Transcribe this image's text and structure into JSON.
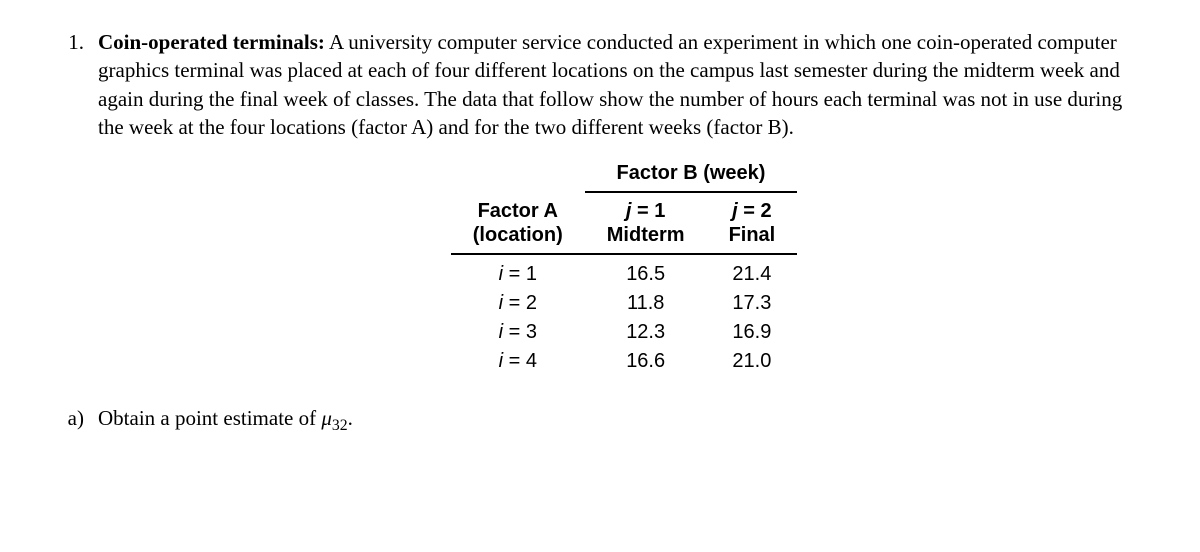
{
  "question": {
    "number": "1.",
    "title": "Coin-operated terminals:",
    "text": " A university computer service conducted an experiment in which one coin-operated computer graphics terminal was placed at each of four different locations on the campus last semester during the midterm week and again during the final week of classes. The data that follow show the number of hours each terminal was not in use during the week at the four locations (factor A) and for the two different weeks (factor B)."
  },
  "table": {
    "factorB_header": "Factor B (week)",
    "factorA_header_line1": "Factor A",
    "factorA_header_line2": "(location)",
    "col1_line1_prefix": "j",
    "col1_line1_suffix": " = 1",
    "col1_line2": "Midterm",
    "col2_line1_prefix": "j",
    "col2_line1_suffix": " = 2",
    "col2_line2": "Final",
    "rows": [
      {
        "label_prefix": "i",
        "label_suffix": " = 1",
        "c1": "16.5",
        "c2": "21.4"
      },
      {
        "label_prefix": "i",
        "label_suffix": " = 2",
        "c1": "11.8",
        "c2": "17.3"
      },
      {
        "label_prefix": "i",
        "label_suffix": " = 3",
        "c1": "12.3",
        "c2": "16.9"
      },
      {
        "label_prefix": "i",
        "label_suffix": " = 4",
        "c1": "16.6",
        "c2": "21.0"
      }
    ]
  },
  "subpart": {
    "label": "a)",
    "text_before": "Obtain a point estimate of ",
    "mu": "μ",
    "mu_sub": "32",
    "text_after": "."
  }
}
